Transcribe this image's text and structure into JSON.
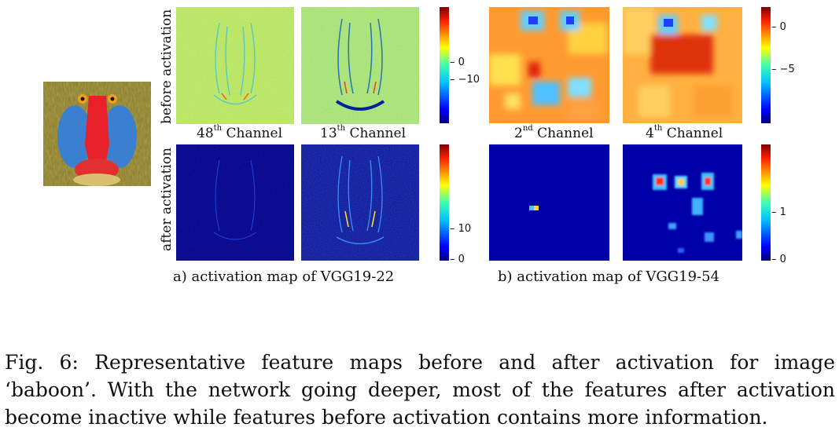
{
  "figure": {
    "row_labels": {
      "before": "before activation",
      "after": "after activation"
    },
    "panel_a": {
      "channels": [
        {
          "ordinal": "48",
          "suffix": "th",
          "word": "Channel"
        },
        {
          "ordinal": "13",
          "suffix": "th",
          "word": "Channel"
        }
      ],
      "colorbar_top_ticks": [
        "0",
        "−10"
      ],
      "colorbar_bottom_ticks": [
        "10",
        "0"
      ],
      "subcaption": "a) activation map of VGG19-22"
    },
    "panel_b": {
      "channels": [
        {
          "ordinal": "2",
          "suffix": "nd",
          "word": "Channel"
        },
        {
          "ordinal": "4",
          "suffix": "th",
          "word": "Channel"
        }
      ],
      "colorbar_top_ticks": [
        "0",
        "−5"
      ],
      "colorbar_bottom_ticks": [
        "1",
        "0"
      ],
      "subcaption": "b) activation map of VGG19-54"
    }
  },
  "caption": {
    "label": "Fig. 6:",
    "text": "Representative feature maps before and after activation for image ‘baboon’. With the network going deeper, most of the features after activation become inactive while features before activation contains more information."
  },
  "colors": {
    "jet_low": "#00007f",
    "jet_high": "#7f0000",
    "baboon_nose": "#e8202a",
    "baboon_cheek": "#3a7fd0"
  }
}
